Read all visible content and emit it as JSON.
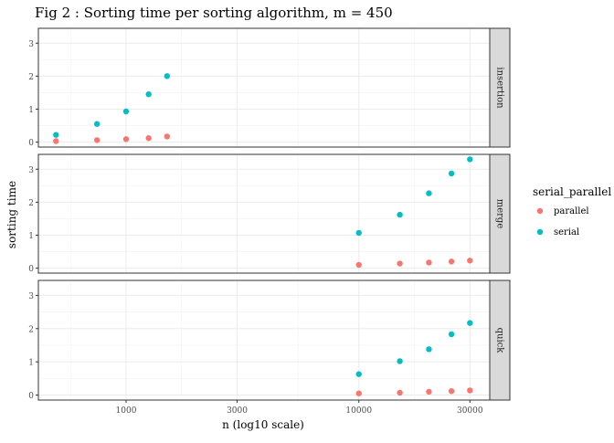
{
  "chart_data": {
    "type": "scatter",
    "title": "Fig 2 : Sorting time per sorting algorithm, m = 450",
    "xlabel": "n (log10 scale)",
    "ylabel": "sorting time",
    "x_scale": "log10",
    "xlim": [
      420,
      36500
    ],
    "ylim": [
      -0.15,
      3.45
    ],
    "x_ticks": [
      1000,
      3000,
      10000,
      30000
    ],
    "x_tick_labels": [
      "1000",
      "3000",
      "10000",
      "30000"
    ],
    "y_ticks": [
      0,
      1,
      2,
      3
    ],
    "y_tick_labels": [
      "0",
      "1",
      "2",
      "3"
    ],
    "grid": true,
    "legend": {
      "title": "serial_parallel",
      "position": "right",
      "entries": [
        {
          "label": "parallel",
          "color": "#F8766D"
        },
        {
          "label": "serial",
          "color": "#00BFC4"
        }
      ]
    },
    "facets": [
      {
        "label": "insertion",
        "series": [
          {
            "name": "parallel",
            "color": "#F8766D",
            "x": [
              500,
              750,
              1000,
              1250,
              1500
            ],
            "y": [
              0.03,
              0.06,
              0.09,
              0.12,
              0.17
            ]
          },
          {
            "name": "serial",
            "color": "#00BFC4",
            "x": [
              500,
              750,
              1000,
              1250,
              1500
            ],
            "y": [
              0.22,
              0.55,
              0.93,
              1.45,
              2.0
            ]
          }
        ]
      },
      {
        "label": "merge",
        "series": [
          {
            "name": "parallel",
            "color": "#F8766D",
            "x": [
              10000,
              15000,
              20000,
              25000,
              30000
            ],
            "y": [
              0.1,
              0.14,
              0.17,
              0.2,
              0.23
            ]
          },
          {
            "name": "serial",
            "color": "#00BFC4",
            "x": [
              10000,
              15000,
              20000,
              25000,
              30000
            ],
            "y": [
              1.07,
              1.62,
              2.27,
              2.87,
              3.3
            ]
          }
        ]
      },
      {
        "label": "quick",
        "series": [
          {
            "name": "parallel",
            "color": "#F8766D",
            "x": [
              10000,
              15000,
              20000,
              25000,
              30000
            ],
            "y": [
              0.05,
              0.07,
              0.1,
              0.12,
              0.14
            ]
          },
          {
            "name": "serial",
            "color": "#00BFC4",
            "x": [
              10000,
              15000,
              20000,
              25000,
              30000
            ],
            "y": [
              0.63,
              1.02,
              1.38,
              1.83,
              2.17
            ]
          }
        ]
      }
    ]
  }
}
